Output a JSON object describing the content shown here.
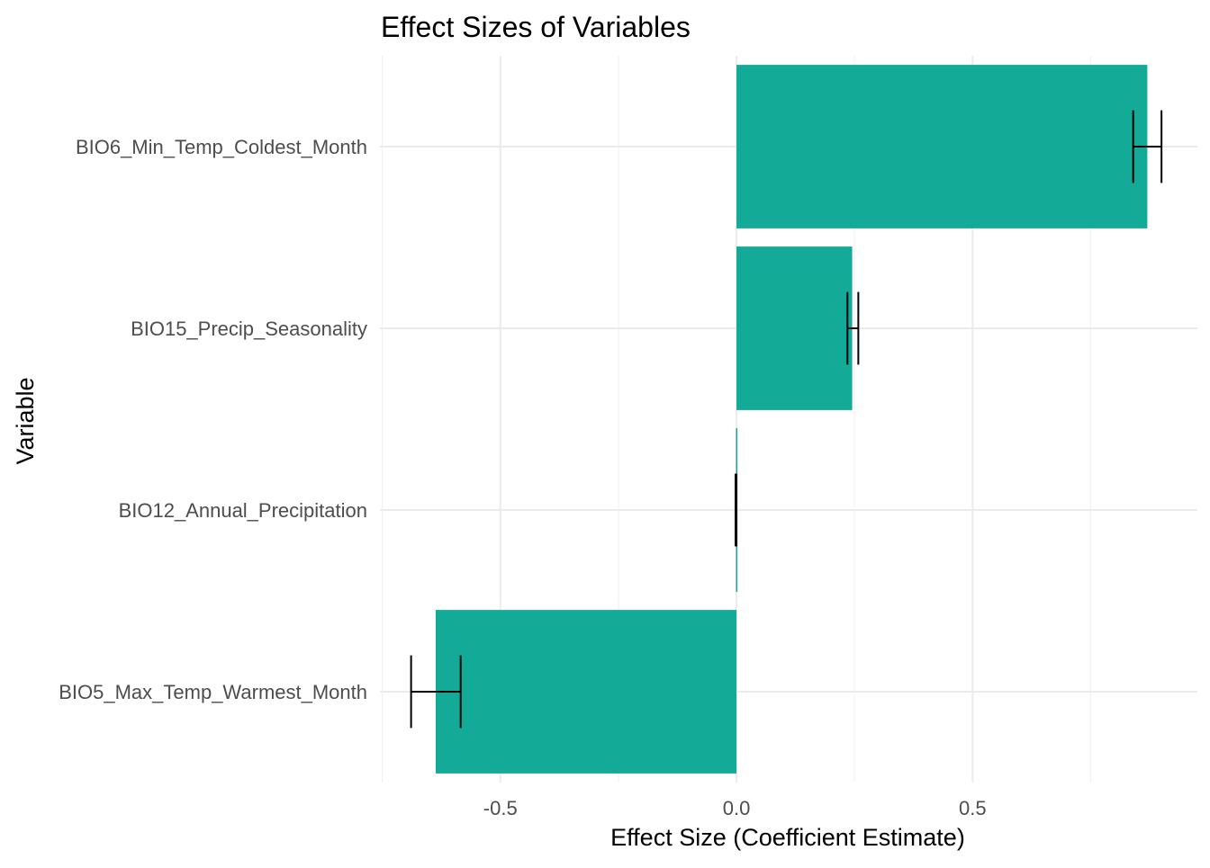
{
  "chart_data": {
    "type": "bar",
    "orientation": "horizontal",
    "title": "Effect Sizes of Variables",
    "xlabel": "Effect Size (Coefficient Estimate)",
    "ylabel": "Variable",
    "categories": [
      "BIO5_Max_Temp_Warmest_Month",
      "BIO12_Annual_Precipitation",
      "BIO15_Precip_Seasonality",
      "BIO6_Min_Temp_Coldest_Month"
    ],
    "values": [
      -0.637,
      -0.001,
      0.245,
      0.87
    ],
    "error_low": [
      -0.689,
      -0.002,
      0.235,
      0.84
    ],
    "error_high": [
      -0.584,
      0.0,
      0.258,
      0.9
    ],
    "xticks": [
      -0.5,
      0.0,
      0.5
    ],
    "xtick_labels": [
      "-0.5",
      "0.0",
      "0.5"
    ],
    "xlim": [
      -0.755,
      0.976
    ],
    "grid": true,
    "legend": "none",
    "bar_color": "#13AA97",
    "errorbar_color": "#000000"
  }
}
